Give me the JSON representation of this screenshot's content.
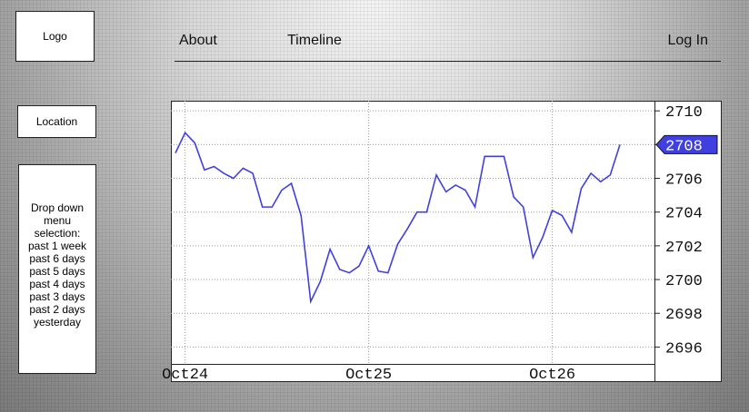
{
  "sidebar": {
    "logo": "Logo",
    "location": "Location",
    "dropdown": [
      "Drop down",
      "menu",
      "selection:",
      "past 1 week",
      "past 6 days",
      "past 5 days",
      "past 4 days",
      "past 3 days",
      "past 2 days",
      "yesterday"
    ]
  },
  "nav": {
    "links": [
      "About",
      "Timeline"
    ],
    "login": "Log In"
  },
  "chart_data": {
    "type": "line",
    "categories": [
      null,
      "Oct24",
      null,
      null,
      null,
      null,
      null,
      null,
      null,
      null,
      null,
      null,
      null,
      null,
      null,
      null,
      null,
      null,
      null,
      null,
      "Oct25",
      null,
      null,
      null,
      null,
      null,
      null,
      null,
      null,
      null,
      null,
      null,
      null,
      null,
      null,
      null,
      null,
      null,
      null,
      "Oct26",
      null,
      null,
      null,
      null,
      null,
      null,
      null
    ],
    "series": [
      {
        "color": "#4040e0",
        "values": [
          2707.5,
          2708.7,
          2708.1,
          2706.5,
          2706.7,
          2706.3,
          2706.0,
          2706.6,
          2706.3,
          2704.3,
          2704.3,
          2705.3,
          2705.7,
          2703.8,
          2698.7,
          2699.9,
          2701.8,
          2700.6,
          2700.4,
          2700.8,
          2702.0,
          2700.5,
          2700.4,
          2702.1,
          2703.0,
          2704.0,
          2704.0,
          2706.2,
          2705.2,
          2705.6,
          2705.3,
          2704.3,
          2707.3,
          2707.3,
          2707.3,
          2704.9,
          2704.3,
          2701.3,
          2702.5,
          2704.1,
          2703.8,
          2702.8,
          2705.4,
          2706.3,
          2705.8,
          2706.2,
          2708.0
        ]
      }
    ],
    "current_value": 2708,
    "ylim": [
      2695,
      2710.6
    ],
    "yticks": [
      2696,
      2698,
      2700,
      2702,
      2704,
      2706,
      2708,
      2710
    ],
    "grid": true
  }
}
